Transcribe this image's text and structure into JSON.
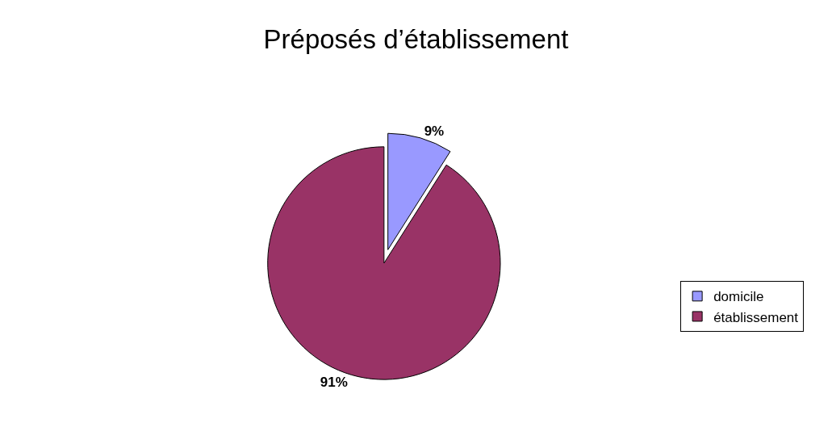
{
  "chart_data": {
    "type": "pie",
    "title": "Préposés d’établissement",
    "categories": [
      "domicile",
      "établissement"
    ],
    "values": [
      9,
      91
    ],
    "colors": [
      "#9999ff",
      "#993366"
    ],
    "value_labels": [
      "9%",
      "91%"
    ],
    "legend": "right"
  }
}
